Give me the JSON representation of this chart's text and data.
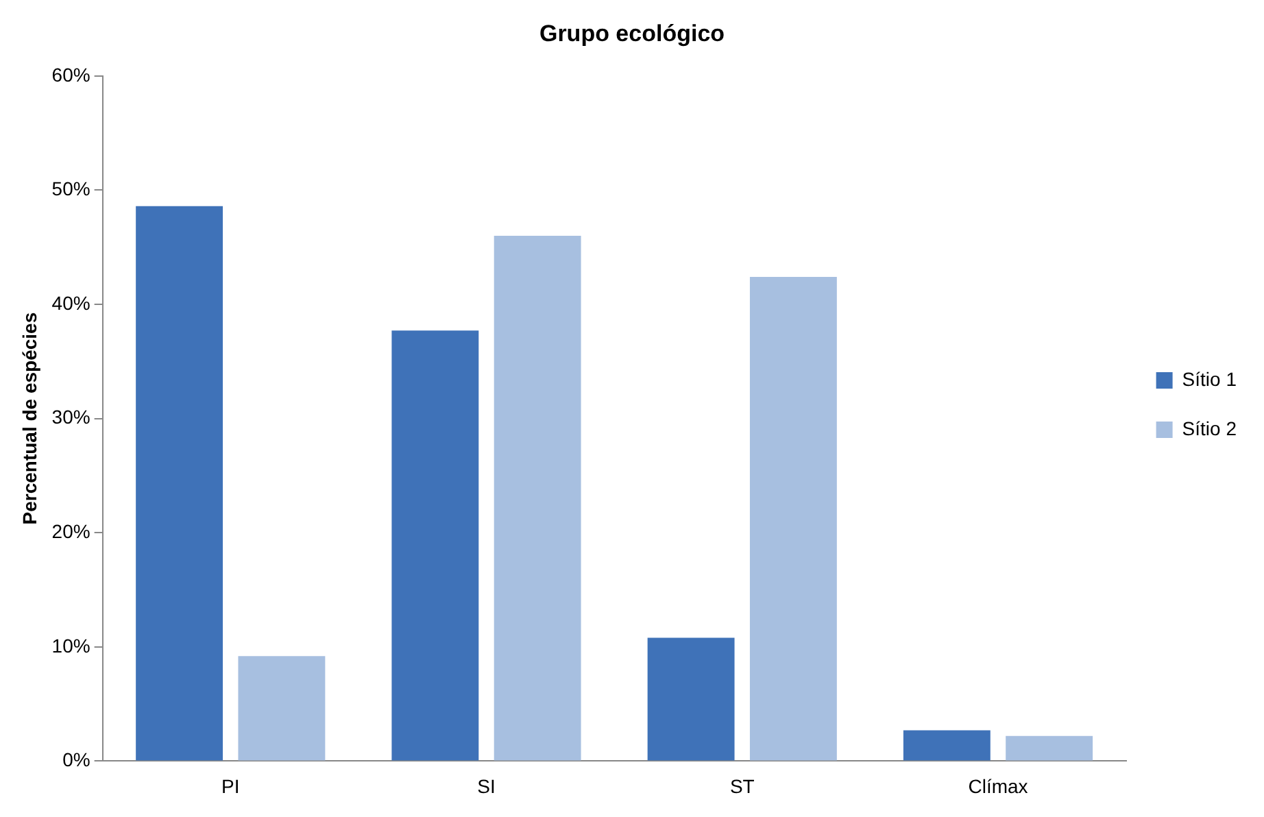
{
  "chart_data": {
    "type": "bar",
    "title": "Grupo ecológico",
    "ylabel": "Percentual de espécies",
    "categories": [
      "PI",
      "SI",
      "ST",
      "Clímax"
    ],
    "series": [
      {
        "name": "Sítio 1",
        "color": "#3f72b8",
        "values": [
          48.6,
          37.7,
          10.8,
          2.7
        ]
      },
      {
        "name": "Sítio 2",
        "color": "#a7bfe0",
        "values": [
          9.2,
          46,
          42.4,
          2.2
        ]
      }
    ],
    "ylim": [
      0,
      60
    ],
    "yticks": [
      {
        "value": 0,
        "label": "0%"
      },
      {
        "value": 10,
        "label": "10%"
      },
      {
        "value": 20,
        "label": "20%"
      },
      {
        "value": 30,
        "label": "30%"
      },
      {
        "value": 40,
        "label": "40%"
      },
      {
        "value": 50,
        "label": "50%"
      },
      {
        "value": 60,
        "label": "60%"
      }
    ],
    "grid": false,
    "legend": "right"
  }
}
